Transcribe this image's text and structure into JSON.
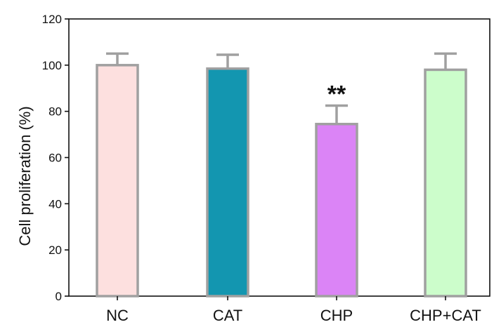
{
  "chart_data": {
    "type": "bar",
    "title": "",
    "xlabel": "",
    "ylabel": "Cell proliferation (%)",
    "categories": [
      "NC",
      "CAT",
      "CHP",
      "CHP+CAT"
    ],
    "values": [
      100,
      98.5,
      74.5,
      98
    ],
    "errors": [
      5,
      6,
      8,
      7
    ],
    "ylim": [
      0,
      120
    ],
    "yticks": [
      0,
      20,
      40,
      60,
      80,
      100,
      120
    ],
    "ytick_labels": [
      "0",
      "20",
      "40",
      "60",
      "80",
      "100",
      "120"
    ],
    "bar_colors": [
      "#fde0df",
      "#1396b0",
      "#db84f6",
      "#ccfdcb"
    ],
    "bar_edge_color": "#a0a0a0",
    "annotations": [
      {
        "category": "CHP",
        "text": "**"
      }
    ],
    "grid": false,
    "legend": "none"
  }
}
